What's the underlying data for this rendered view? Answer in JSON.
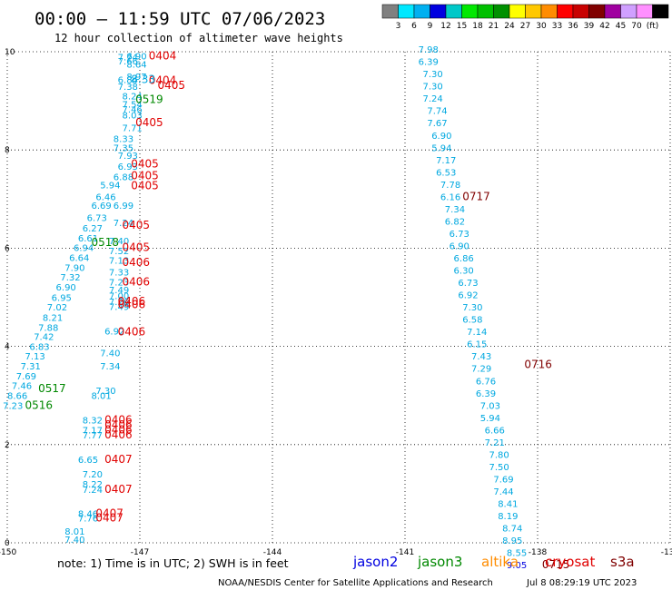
{
  "title": "00:00 – 11:59 UTC 07/06/2023",
  "subtitle": "12 hour collection of altimeter wave heights",
  "legend": {
    "colors": [
      "#808080",
      "#00e8ff",
      "#00b0f0",
      "#0000e0",
      "#00c8c8",
      "#00e800",
      "#00c000",
      "#009000",
      "#ffff00",
      "#ffc800",
      "#ff8c00",
      "#ff0000",
      "#c80000",
      "#800000",
      "#a000a0",
      "#d0a0ff",
      "#ff90ff",
      "#000000"
    ],
    "labels": [
      "3",
      "6",
      "9",
      "12",
      "15",
      "18",
      "21",
      "24",
      "27",
      "30",
      "33",
      "36",
      "39",
      "42",
      "45",
      "70",
      "(ft)"
    ]
  },
  "note": "note:  1) Time is in UTC; 2) SWH is in feet",
  "satellites": [
    {
      "name": "jason2",
      "color": "#0000e0"
    },
    {
      "name": "jason3",
      "color": "#008800"
    },
    {
      "name": "altika",
      "color": "#ff8c00"
    },
    {
      "name": "cryosat",
      "color": "#e00000"
    },
    {
      "name": "s3a",
      "color": "#800000"
    }
  ],
  "credit": "NOAA/NESDIS Center for Satellite Applications and Research",
  "timestamp": "Jul  8 08:29:19 UTC 2023",
  "chart_data": {
    "type": "scatter",
    "x_range": [
      -150,
      -135
    ],
    "y_range": [
      0,
      10
    ],
    "x_ticks": [
      "-150",
      "-147",
      "-144",
      "-141",
      "-138",
      "-135"
    ],
    "y_ticks": [
      "10",
      "8",
      "6",
      "4",
      "2",
      "0"
    ],
    "x_tick_values": [
      -150,
      -147,
      -144,
      -141,
      -138,
      -135
    ],
    "y_tick_values": [
      10,
      8,
      6,
      4,
      2,
      0
    ],
    "grid": true,
    "series": [
      {
        "color": "#00a8e0",
        "points": [
          {
            "x": -147.3,
            "y": 9.84,
            "v": "6.90"
          },
          {
            "x": -147.5,
            "y": 9.82,
            "v": "7.74"
          },
          {
            "x": -147.5,
            "y": 9.74,
            "v": "7.66"
          },
          {
            "x": -147.3,
            "y": 9.68,
            "v": "8.64"
          },
          {
            "x": -147.3,
            "y": 9.43,
            "v": "8.97"
          },
          {
            "x": -147.5,
            "y": 9.36,
            "v": "6.84"
          },
          {
            "x": -147.5,
            "y": 9.22,
            "v": "7.38"
          },
          {
            "x": -147.4,
            "y": 9.03,
            "v": "8.24"
          },
          {
            "x": -147.4,
            "y": 8.86,
            "v": "7.54"
          },
          {
            "x": -147.4,
            "y": 8.76,
            "v": "7.46"
          },
          {
            "x": -147.4,
            "y": 8.64,
            "v": "8.03"
          },
          {
            "x": -147.4,
            "y": 8.38,
            "v": "7.71"
          },
          {
            "x": -147.6,
            "y": 8.16,
            "v": "8.33"
          },
          {
            "x": -147.6,
            "y": 7.98,
            "v": "7.35"
          },
          {
            "x": -147.5,
            "y": 7.82,
            "v": "7.93"
          },
          {
            "x": -147.5,
            "y": 7.6,
            "v": "6.93"
          },
          {
            "x": -147.6,
            "y": 7.38,
            "v": "6.88"
          },
          {
            "x": -147.9,
            "y": 7.22,
            "v": "5.94"
          },
          {
            "x": -148.0,
            "y": 6.98,
            "v": "6.46"
          },
          {
            "x": -148.1,
            "y": 6.8,
            "v": "6.69"
          },
          {
            "x": -147.6,
            "y": 6.8,
            "v": "6.99"
          },
          {
            "x": -148.2,
            "y": 6.55,
            "v": "6.73"
          },
          {
            "x": -147.6,
            "y": 6.45,
            "v": "7.24"
          },
          {
            "x": -148.3,
            "y": 6.34,
            "v": "6.27"
          },
          {
            "x": -148.4,
            "y": 6.14,
            "v": "6.61"
          },
          {
            "x": -147.7,
            "y": 6.08,
            "v": "7.40"
          },
          {
            "x": -148.5,
            "y": 5.94,
            "v": "6.94"
          },
          {
            "x": -147.7,
            "y": 5.88,
            "v": "7.52"
          },
          {
            "x": -148.6,
            "y": 5.74,
            "v": "6.64"
          },
          {
            "x": -147.7,
            "y": 5.68,
            "v": "7.13"
          },
          {
            "x": -148.7,
            "y": 5.54,
            "v": "7.90"
          },
          {
            "x": -147.7,
            "y": 5.44,
            "v": "7.33"
          },
          {
            "x": -148.8,
            "y": 5.34,
            "v": "7.32"
          },
          {
            "x": -147.7,
            "y": 5.24,
            "v": "7.23"
          },
          {
            "x": -148.9,
            "y": 5.14,
            "v": "6.90"
          },
          {
            "x": -147.7,
            "y": 5.08,
            "v": "7.49"
          },
          {
            "x": -147.7,
            "y": 4.96,
            "v": "7.00"
          },
          {
            "x": -149.0,
            "y": 4.93,
            "v": "6.95"
          },
          {
            "x": -147.7,
            "y": 4.84,
            "v": "7.26"
          },
          {
            "x": -147.7,
            "y": 4.74,
            "v": "7.49"
          },
          {
            "x": -149.1,
            "y": 4.73,
            "v": "7.02"
          },
          {
            "x": -149.2,
            "y": 4.52,
            "v": "8.21"
          },
          {
            "x": -149.3,
            "y": 4.32,
            "v": "7.88"
          },
          {
            "x": -147.8,
            "y": 4.24,
            "v": "6.92"
          },
          {
            "x": -149.4,
            "y": 4.13,
            "v": "7.42"
          },
          {
            "x": -149.5,
            "y": 3.93,
            "v": "6.83"
          },
          {
            "x": -147.9,
            "y": 3.8,
            "v": "7.40"
          },
          {
            "x": -149.6,
            "y": 3.73,
            "v": "7.13"
          },
          {
            "x": -147.9,
            "y": 3.53,
            "v": "7.34"
          },
          {
            "x": -149.7,
            "y": 3.53,
            "v": "7.31"
          },
          {
            "x": -149.8,
            "y": 3.33,
            "v": "7.69"
          },
          {
            "x": -149.9,
            "y": 3.13,
            "v": "7.46"
          },
          {
            "x": -148.0,
            "y": 3.03,
            "v": "7.30"
          },
          {
            "x": -148.1,
            "y": 2.93,
            "v": "8.01"
          },
          {
            "x": -150.0,
            "y": 2.93,
            "v": "8.66"
          },
          {
            "x": -150.1,
            "y": 2.73,
            "v": "7.23"
          },
          {
            "x": -148.3,
            "y": 2.43,
            "v": "8.32"
          },
          {
            "x": -148.3,
            "y": 2.23,
            "v": "7.17"
          },
          {
            "x": -148.3,
            "y": 2.13,
            "v": "7.77"
          },
          {
            "x": -148.4,
            "y": 1.63,
            "v": "6.65"
          },
          {
            "x": -148.3,
            "y": 1.33,
            "v": "7.20"
          },
          {
            "x": -148.3,
            "y": 1.13,
            "v": "8.22"
          },
          {
            "x": -148.3,
            "y": 1.02,
            "v": "7.24"
          },
          {
            "x": -148.4,
            "y": 0.53,
            "v": "8.46"
          },
          {
            "x": -148.4,
            "y": 0.43,
            "v": "7.76"
          },
          {
            "x": -148.7,
            "y": 0.17,
            "v": "8.01"
          },
          {
            "x": -148.7,
            "y": 0.0,
            "v": "7.40"
          },
          {
            "x": -140.7,
            "y": 9.98,
            "v": "7.98"
          },
          {
            "x": -140.7,
            "y": 9.73,
            "v": "6.39"
          },
          {
            "x": -140.6,
            "y": 9.48,
            "v": "7.30"
          },
          {
            "x": -140.6,
            "y": 9.23,
            "v": "7.30"
          },
          {
            "x": -140.6,
            "y": 8.98,
            "v": "7.24"
          },
          {
            "x": -140.5,
            "y": 8.73,
            "v": "7.74"
          },
          {
            "x": -140.5,
            "y": 8.48,
            "v": "7.67"
          },
          {
            "x": -140.4,
            "y": 8.23,
            "v": "6.90"
          },
          {
            "x": -140.4,
            "y": 7.98,
            "v": "5.94"
          },
          {
            "x": -140.3,
            "y": 7.73,
            "v": "7.17"
          },
          {
            "x": -140.3,
            "y": 7.48,
            "v": "6.53"
          },
          {
            "x": -140.2,
            "y": 7.23,
            "v": "7.78"
          },
          {
            "x": -140.2,
            "y": 6.98,
            "v": "6.16"
          },
          {
            "x": -140.1,
            "y": 6.73,
            "v": "7.34"
          },
          {
            "x": -140.1,
            "y": 6.48,
            "v": "6.82"
          },
          {
            "x": -140.0,
            "y": 6.23,
            "v": "6.73"
          },
          {
            "x": -140.0,
            "y": 5.98,
            "v": "6.90"
          },
          {
            "x": -139.9,
            "y": 5.73,
            "v": "6.86"
          },
          {
            "x": -139.9,
            "y": 5.48,
            "v": "6.30"
          },
          {
            "x": -139.8,
            "y": 5.23,
            "v": "6.73"
          },
          {
            "x": -139.8,
            "y": 4.98,
            "v": "6.92"
          },
          {
            "x": -139.7,
            "y": 4.73,
            "v": "7.30"
          },
          {
            "x": -139.7,
            "y": 4.48,
            "v": "6.58"
          },
          {
            "x": -139.6,
            "y": 4.23,
            "v": "7.14"
          },
          {
            "x": -139.6,
            "y": 3.98,
            "v": "6.15"
          },
          {
            "x": -139.5,
            "y": 3.73,
            "v": "7.43"
          },
          {
            "x": -139.5,
            "y": 3.48,
            "v": "7.29"
          },
          {
            "x": -139.4,
            "y": 3.23,
            "v": "6.76"
          },
          {
            "x": -139.4,
            "y": 2.98,
            "v": "6.39"
          },
          {
            "x": -139.3,
            "y": 2.73,
            "v": "7.03"
          },
          {
            "x": -139.3,
            "y": 2.48,
            "v": "5.94"
          },
          {
            "x": -139.2,
            "y": 2.23,
            "v": "6.66"
          },
          {
            "x": -139.2,
            "y": 1.98,
            "v": "7.21"
          },
          {
            "x": -139.1,
            "y": 1.73,
            "v": "7.80"
          },
          {
            "x": -139.1,
            "y": 1.48,
            "v": "7.50"
          },
          {
            "x": -139.0,
            "y": 1.23,
            "v": "7.69"
          },
          {
            "x": -139.0,
            "y": 0.98,
            "v": "7.44"
          },
          {
            "x": -138.9,
            "y": 0.73,
            "v": "8.41"
          },
          {
            "x": -138.9,
            "y": 0.48,
            "v": "8.19"
          },
          {
            "x": -138.8,
            "y": 0.23,
            "v": "8.74"
          },
          {
            "x": -138.8,
            "y": -0.02,
            "v": "8.95"
          },
          {
            "x": -138.7,
            "y": -0.27,
            "v": "8.55"
          }
        ]
      },
      {
        "color": "#0000e0",
        "points": [
          {
            "x": -138.7,
            "y": -0.52,
            "v": "9.05"
          }
        ]
      }
    ],
    "time_labels": [
      {
        "x": -146.8,
        "y": 9.84,
        "t": "0404",
        "color": "#e00000"
      },
      {
        "x": -146.8,
        "y": 9.34,
        "t": "0404",
        "color": "#e00000"
      },
      {
        "x": -146.6,
        "y": 9.24,
        "t": "0405",
        "color": "#e00000"
      },
      {
        "x": -147.2,
        "y": 9.36,
        "t": "8.33",
        "color": "#00a8e0"
      },
      {
        "x": -147.1,
        "y": 8.96,
        "t": "0519",
        "color": "#008800"
      },
      {
        "x": -147.1,
        "y": 8.48,
        "t": "0405",
        "color": "#e00000"
      },
      {
        "x": -147.2,
        "y": 7.64,
        "t": "0405",
        "color": "#e00000"
      },
      {
        "x": -147.2,
        "y": 7.4,
        "t": "0405",
        "color": "#e00000"
      },
      {
        "x": -147.2,
        "y": 7.2,
        "t": "0405",
        "color": "#e00000"
      },
      {
        "x": -147.4,
        "y": 6.4,
        "t": "0405",
        "color": "#e00000"
      },
      {
        "x": -148.1,
        "y": 6.04,
        "t": "0518",
        "color": "#008800"
      },
      {
        "x": -147.4,
        "y": 5.94,
        "t": "0405",
        "color": "#e00000"
      },
      {
        "x": -147.4,
        "y": 5.64,
        "t": "0406",
        "color": "#e00000"
      },
      {
        "x": -147.4,
        "y": 5.24,
        "t": "0406",
        "color": "#e00000"
      },
      {
        "x": -147.5,
        "y": 4.84,
        "t": "0406",
        "color": "#e00000"
      },
      {
        "x": -147.5,
        "y": 4.78,
        "t": "0406",
        "color": "#e00000"
      },
      {
        "x": -147.5,
        "y": 4.22,
        "t": "0406",
        "color": "#e00000"
      },
      {
        "x": -149.3,
        "y": 3.07,
        "t": "0517",
        "color": "#008800"
      },
      {
        "x": -149.6,
        "y": 2.73,
        "t": "0516",
        "color": "#008800"
      },
      {
        "x": -147.8,
        "y": 2.43,
        "t": "0406",
        "color": "#e00000"
      },
      {
        "x": -147.8,
        "y": 2.33,
        "t": "0406",
        "color": "#e00000"
      },
      {
        "x": -147.8,
        "y": 2.23,
        "t": "0406",
        "color": "#e00000"
      },
      {
        "x": -147.8,
        "y": 2.13,
        "t": "0406",
        "color": "#e00000"
      },
      {
        "x": -147.8,
        "y": 1.63,
        "t": "0407",
        "color": "#e00000"
      },
      {
        "x": -147.8,
        "y": 1.02,
        "t": "0407",
        "color": "#e00000"
      },
      {
        "x": -148.0,
        "y": 0.53,
        "t": "0407",
        "color": "#e00000"
      },
      {
        "x": -148.0,
        "y": 0.43,
        "t": "0407",
        "color": "#e00000"
      },
      {
        "x": -139.7,
        "y": 6.98,
        "t": "0717",
        "color": "#800000"
      },
      {
        "x": -138.3,
        "y": 3.56,
        "t": "0716",
        "color": "#800000"
      },
      {
        "x": -137.9,
        "y": -0.52,
        "t": "0715",
        "color": "#800000"
      }
    ]
  }
}
